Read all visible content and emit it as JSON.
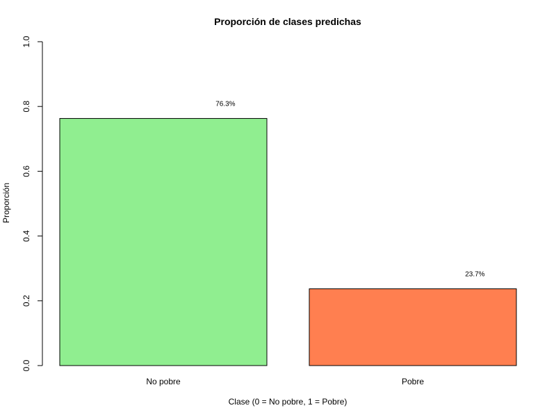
{
  "chart_data": {
    "type": "bar",
    "title": "Proporción de clases predichas",
    "xlabel": "Clase (0 = No pobre, 1 = Pobre)",
    "ylabel": "Proporción",
    "categories": [
      "No pobre",
      "Pobre"
    ],
    "values": [
      0.763,
      0.237
    ],
    "data_labels": [
      "76.3%",
      "23.7%"
    ],
    "colors": [
      "#90ee90",
      "#ff7f50"
    ],
    "ylim": [
      0,
      1
    ],
    "yticks": [
      0,
      0.2,
      0.4,
      0.6,
      0.8,
      1
    ],
    "ytick_labels": [
      "0.0",
      "0.2",
      "0.4",
      "0.6",
      "0.8",
      "1.0"
    ],
    "grid": false,
    "legend": "none"
  }
}
